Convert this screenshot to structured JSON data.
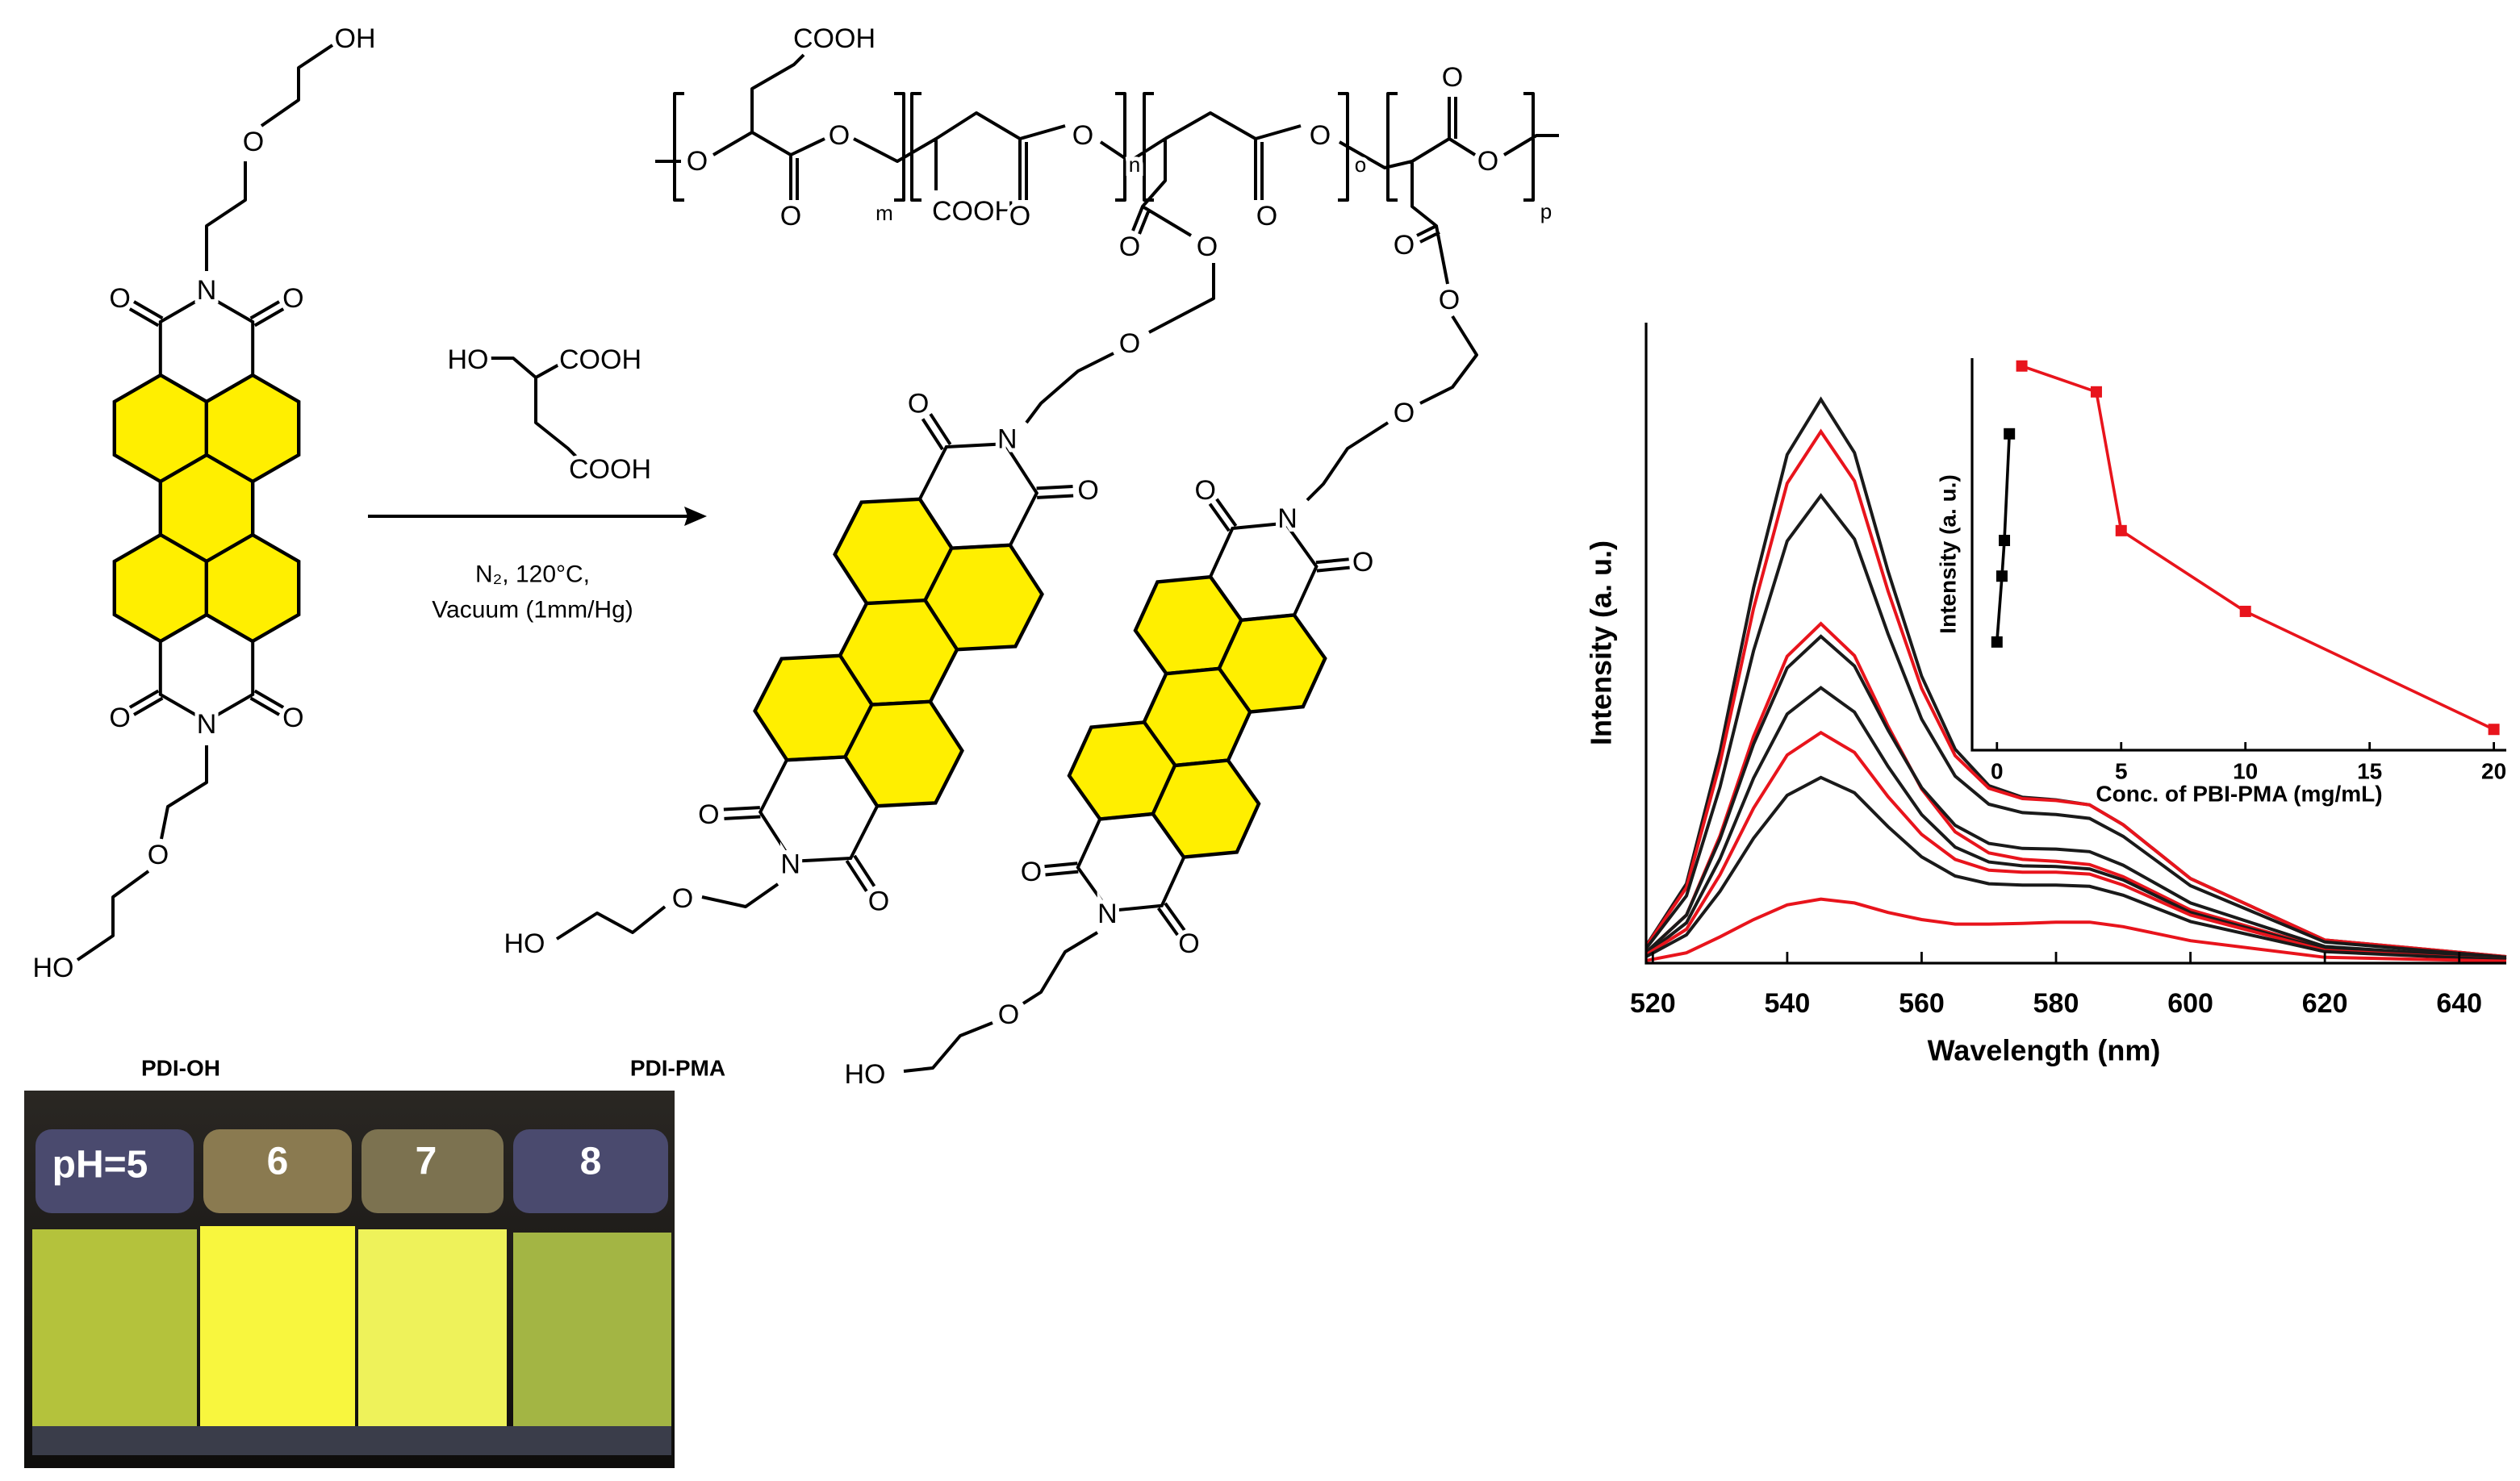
{
  "scheme": {
    "pdi_oh": {
      "atoms": [
        "OH",
        "O",
        "O",
        "N",
        "O",
        "O",
        "N",
        "O",
        "O",
        "HO"
      ]
    },
    "reagent": {
      "atoms": [
        "HO",
        "COOH",
        "COOH"
      ]
    },
    "conditions": [
      "N₂, 120°C,",
      "Vacuum (1mm/Hg)"
    ],
    "pdi_pma": {
      "atoms": [
        "COOH",
        "O",
        "O",
        "O",
        "m",
        "COOH",
        "O",
        "O",
        "n",
        "O",
        "O",
        "O",
        "O",
        "o",
        "O",
        "O",
        "p",
        "O",
        "O",
        "O",
        "O",
        "O",
        "N",
        "O",
        "O",
        "N",
        "O",
        "O",
        "N",
        "O",
        "O",
        "N",
        "O",
        "O",
        "HO",
        "O",
        "HO"
      ]
    }
  },
  "labels": {
    "pdi_oh": "PDI-OH",
    "pdi_pma": "PDI-PMA"
  },
  "photo": {
    "labels": [
      "pH=5",
      "6",
      "7",
      "8"
    ]
  },
  "chart_data": [
    {
      "type": "line",
      "xlabel": "Wavelength (nm)",
      "ylabel": "Intensity (a. u.)",
      "x": [
        519,
        525,
        530,
        535,
        540,
        545,
        550,
        555,
        560,
        565,
        570,
        575,
        580,
        585,
        590,
        600,
        620,
        647
      ],
      "xlim": [
        519,
        647
      ],
      "xticks": [
        520,
        540,
        560,
        580,
        600,
        620,
        640
      ],
      "ylim": [
        0,
        100
      ],
      "series": [
        {
          "color": "#1a1a1a",
          "values": [
            2.7,
            12.4,
            33.0,
            58.6,
            79.4,
            88.0,
            79.7,
            61.2,
            44.8,
            33.4,
            27.7,
            25.9,
            25.5,
            24.7,
            21.6,
            13.2,
            3.6,
            1.0
          ]
        },
        {
          "color": "#e8141c",
          "values": [
            2.6,
            11.8,
            31.2,
            55.4,
            74.9,
            83.0,
            75.3,
            58.1,
            42.9,
            32.4,
            27.3,
            25.7,
            25.4,
            24.7,
            21.6,
            13.2,
            3.6,
            1.0
          ]
        },
        {
          "color": "#1a1a1a",
          "values": [
            2.3,
            10.5,
            27.5,
            48.8,
            65.9,
            73.0,
            66.2,
            51.4,
            38.1,
            29.2,
            24.8,
            23.5,
            23.2,
            22.6,
            19.8,
            12.1,
            3.3,
            0.9
          ]
        },
        {
          "color": "#e8141c",
          "values": [
            1.7,
            7.5,
            19.9,
            35.4,
            47.9,
            53.0,
            48.0,
            37.0,
            27.2,
            20.5,
            17.2,
            16.2,
            15.9,
            15.4,
            13.5,
            8.3,
            2.3,
            0.6
          ]
        },
        {
          "color": "#1a1a1a",
          "values": [
            1.7,
            7.5,
            19.4,
            34.2,
            46.1,
            51.0,
            46.4,
            36.4,
            27.4,
            21.5,
            18.7,
            17.9,
            17.8,
            17.4,
            15.3,
            9.4,
            2.6,
            0.7
          ]
        },
        {
          "color": "#1a1a1a",
          "values": [
            1.4,
            6.3,
            16.3,
            28.9,
            38.9,
            43.0,
            39.2,
            30.7,
            23.2,
            18.1,
            15.8,
            15.2,
            15.1,
            14.7,
            13.0,
            7.9,
            2.2,
            0.6
          ]
        },
        {
          "color": "#e8141c",
          "values": [
            1.3,
            5.3,
            13.8,
            24.2,
            32.5,
            36.0,
            32.9,
            26.0,
            20.1,
            16.2,
            14.5,
            14.2,
            14.2,
            13.9,
            12.2,
            7.5,
            2.0,
            0.5
          ]
        },
        {
          "color": "#1a1a1a",
          "values": [
            1.0,
            4.4,
            11.2,
            19.5,
            26.2,
            29.0,
            26.6,
            21.3,
            16.6,
            13.6,
            12.4,
            12.2,
            12.2,
            12.0,
            10.6,
            6.5,
            1.8,
            0.5
          ]
        },
        {
          "color": "#e8141c",
          "values": [
            0.4,
            1.6,
            4.1,
            6.8,
            9.1,
            10.0,
            9.4,
            7.9,
            6.8,
            6.1,
            6.1,
            6.2,
            6.4,
            6.4,
            5.7,
            3.5,
            0.9,
            0.3
          ]
        }
      ]
    },
    {
      "type": "line",
      "xlabel": "Conc. of PBI-PMA (mg/mL)",
      "ylabel": "Intensity (a. u.)",
      "xlim": [
        -1,
        20.5
      ],
      "xticks": [
        0,
        5,
        10,
        15,
        20
      ],
      "ylim": [
        0,
        100
      ],
      "markers": true,
      "series": [
        {
          "color": "#000000",
          "x": [
            0,
            0.2,
            0.3,
            0.5
          ],
          "values": [
            27.6,
            44.4,
            53.5,
            80.7
          ]
        },
        {
          "color": "#e8141c",
          "x": [
            1,
            4,
            5,
            10,
            20
          ],
          "values": [
            98,
            91.4,
            56,
            35.4,
            5.3
          ]
        }
      ]
    }
  ]
}
